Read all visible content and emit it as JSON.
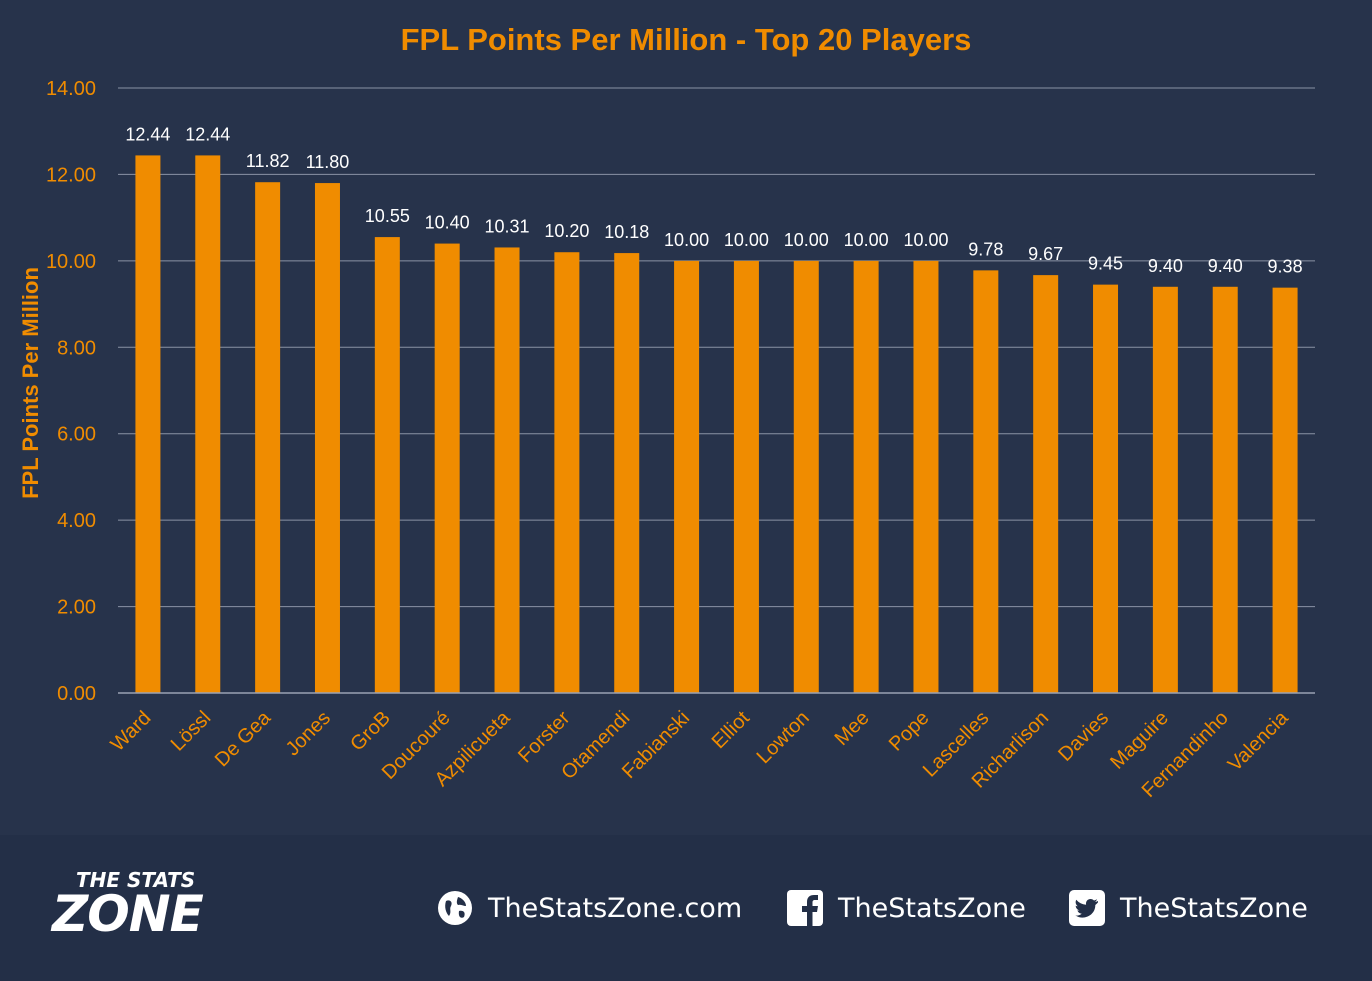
{
  "chart_data": {
    "type": "bar",
    "title": "FPL Points Per Million - Top 20 Players",
    "ylabel": "FPL Points Per Million",
    "xlabel": "",
    "ylim": [
      0,
      14
    ],
    "yticks": [
      "0.00",
      "2.00",
      "4.00",
      "6.00",
      "8.00",
      "10.00",
      "12.00",
      "14.00"
    ],
    "grid": true,
    "categories": [
      "Ward",
      "Lössl",
      "De Gea",
      "Jones",
      "GroB",
      "Doucouré",
      "Azpilicueta",
      "Forster",
      "Otamendi",
      "Fabianski",
      "Elliot",
      "Lowton",
      "Mee",
      "Pope",
      "Lascelles",
      "Richarlison",
      "Davies",
      "Maguire",
      "Fernandinho",
      "Valencia"
    ],
    "values": [
      12.44,
      12.44,
      11.82,
      11.8,
      10.55,
      10.4,
      10.31,
      10.2,
      10.18,
      10.0,
      10.0,
      10.0,
      10.0,
      10.0,
      9.78,
      9.67,
      9.45,
      9.4,
      9.4,
      9.38
    ],
    "data_labels": [
      "12.44",
      "12.44",
      "11.82",
      "11.80",
      "10.55",
      "10.40",
      "10.31",
      "10.20",
      "10.18",
      "10.00",
      "10.00",
      "10.00",
      "10.00",
      "10.00",
      "9.78",
      "9.67",
      "9.45",
      "9.40",
      "9.40",
      "9.38"
    ],
    "colors": {
      "bar": "#f08c00",
      "title": "#f08c00",
      "axis_text": "#f08c00",
      "label": "#ffffff",
      "grid": "#8a93a5",
      "background": "#27334b"
    }
  },
  "footer": {
    "logo_top": "THE STATS",
    "logo_main": "ZONE",
    "website": "TheStatsZone.com",
    "facebook": "TheStatsZone",
    "twitter": "TheStatsZone",
    "icons": [
      "globe-icon",
      "facebook-icon",
      "twitter-icon"
    ]
  }
}
